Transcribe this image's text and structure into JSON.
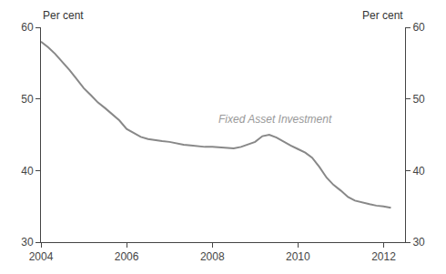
{
  "chart_data": {
    "type": "line",
    "x": [
      2004.0,
      2004.17,
      2004.33,
      2004.5,
      2004.67,
      2004.83,
      2005.0,
      2005.17,
      2005.33,
      2005.5,
      2005.67,
      2005.83,
      2006.0,
      2006.17,
      2006.33,
      2006.5,
      2006.67,
      2006.83,
      2007.0,
      2007.17,
      2007.33,
      2007.5,
      2007.67,
      2007.83,
      2008.0,
      2008.17,
      2008.33,
      2008.5,
      2008.67,
      2008.83,
      2009.0,
      2009.17,
      2009.33,
      2009.5,
      2009.67,
      2009.83,
      2010.0,
      2010.17,
      2010.33,
      2010.5,
      2010.67,
      2010.83,
      2011.0,
      2011.17,
      2011.33,
      2011.5,
      2011.67,
      2011.83,
      2012.0,
      2012.17
    ],
    "values": [
      58.0,
      57.2,
      56.3,
      55.2,
      54.0,
      52.8,
      51.5,
      50.5,
      49.5,
      48.7,
      47.8,
      47.0,
      45.8,
      45.2,
      44.7,
      44.4,
      44.2,
      44.1,
      44.0,
      43.8,
      43.6,
      43.5,
      43.4,
      43.3,
      43.3,
      43.2,
      43.2,
      43.1,
      43.3,
      43.6,
      44.0,
      44.8,
      45.0,
      44.6,
      44.0,
      43.5,
      43.0,
      42.5,
      41.8,
      40.5,
      39.0,
      38.0,
      37.2,
      36.3,
      35.8,
      35.5,
      35.3,
      35.1,
      35.0,
      34.8
    ],
    "color": "#888888",
    "xlim": [
      2004,
      2012.5
    ],
    "xticks": [
      2004,
      2006,
      2008,
      2010,
      2012
    ],
    "ylim": [
      30,
      60
    ],
    "yticks": [
      30,
      40,
      50,
      60
    ],
    "y2lim": [
      30,
      60
    ],
    "y2ticks": [
      30,
      40,
      50,
      60
    ],
    "y_label": "Per cent",
    "y2_label": "Per cent",
    "annotations": [
      {
        "text": "Fixed Asset Investment",
        "x": 2008.1,
        "y": 47.2,
        "color": "#999999"
      }
    ],
    "grid": false
  }
}
